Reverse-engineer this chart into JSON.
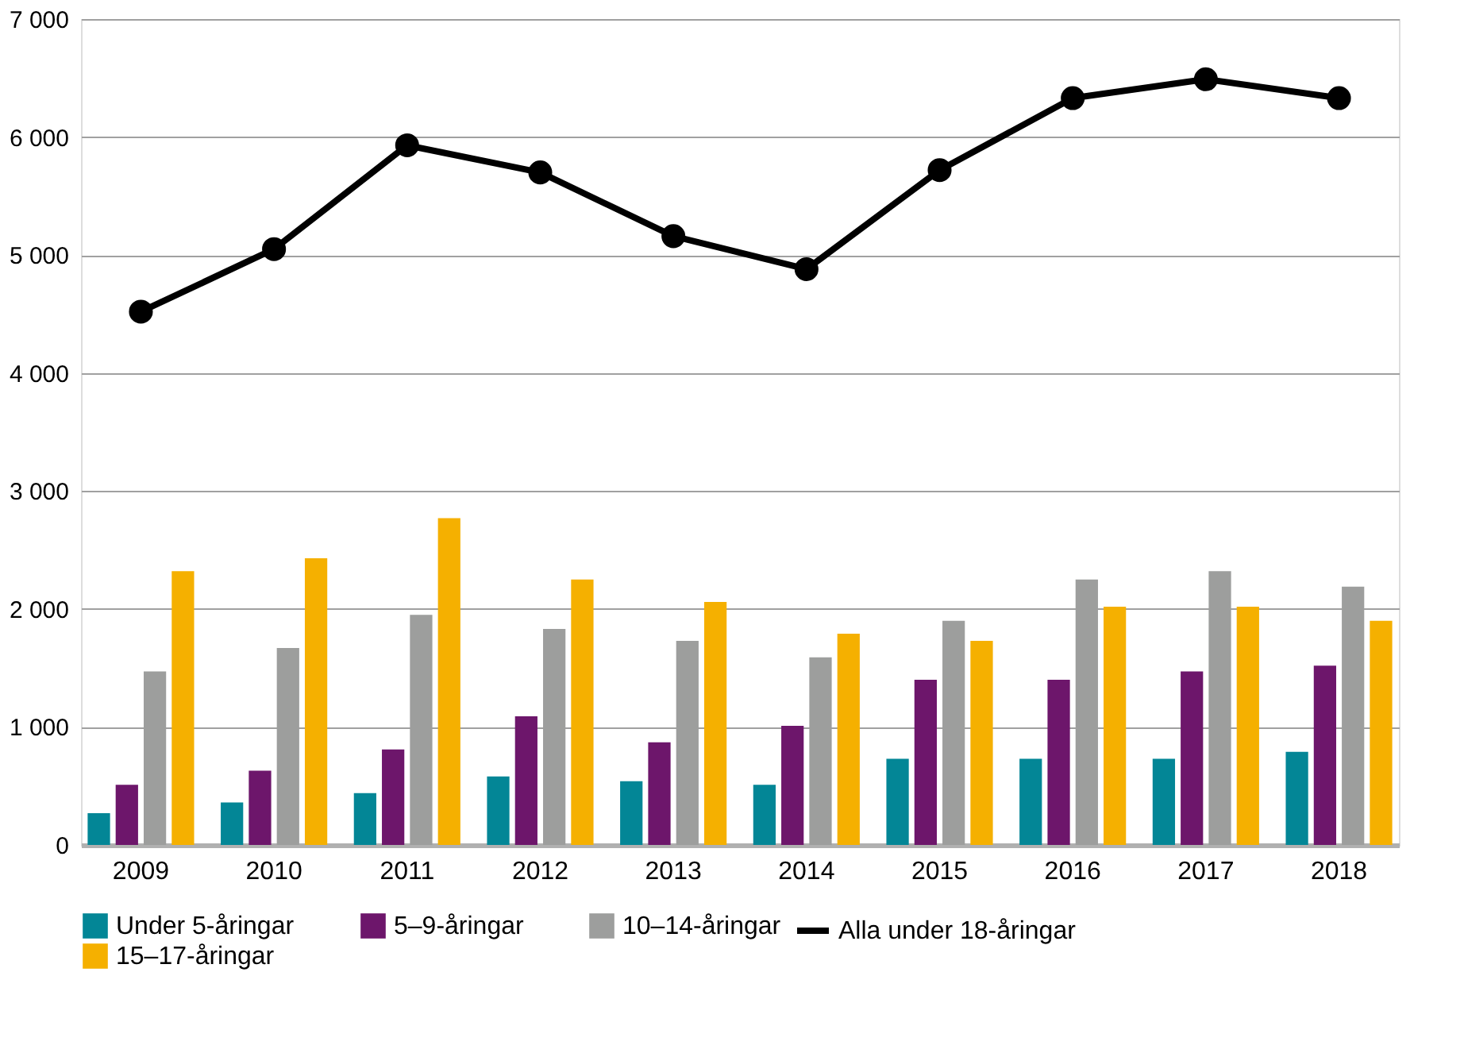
{
  "chart_data": {
    "type": "bar",
    "categories": [
      "2009",
      "2010",
      "2011",
      "2012",
      "2013",
      "2014",
      "2015",
      "2016",
      "2017",
      "2018"
    ],
    "series": [
      {
        "name": "Under 5-åringar",
        "color": "#038696",
        "values": [
          270,
          360,
          440,
          580,
          540,
          510,
          730,
          730,
          730,
          790
        ]
      },
      {
        "name": "5–9-åringar",
        "color": "#6d166b",
        "values": [
          510,
          630,
          810,
          1090,
          870,
          1010,
          1400,
          1400,
          1470,
          1520
        ]
      },
      {
        "name": "10–14-åringar",
        "color": "#9d9e9d",
        "values": [
          1470,
          1670,
          1950,
          1830,
          1730,
          1590,
          1900,
          2250,
          2320,
          2190
        ]
      },
      {
        "name": "15–17-åringar",
        "color": "#f5b000",
        "values": [
          2320,
          2430,
          2770,
          2250,
          2060,
          1790,
          1730,
          2020,
          2020,
          1900
        ]
      },
      {
        "name": "Alla under 18-åringar",
        "color": "#000000",
        "type": "line",
        "marker": "circle",
        "line_style": "solid",
        "values": [
          4520,
          5050,
          5930,
          5700,
          5160,
          4880,
          5720,
          6330,
          6490,
          6330
        ]
      }
    ],
    "ylim": [
      0,
      7000
    ],
    "yticks": [
      {
        "value": 0,
        "label": "0"
      },
      {
        "value": 1000,
        "label": "1 000"
      },
      {
        "value": 2000,
        "label": "2 000"
      },
      {
        "value": 3000,
        "label": "3 000"
      },
      {
        "value": 4000,
        "label": "4 000"
      },
      {
        "value": 5000,
        "label": "5 000"
      },
      {
        "value": 6000,
        "label": "6 000"
      },
      {
        "value": 7000,
        "label": "7 000"
      }
    ],
    "grid": "y",
    "legend": "bottom"
  }
}
